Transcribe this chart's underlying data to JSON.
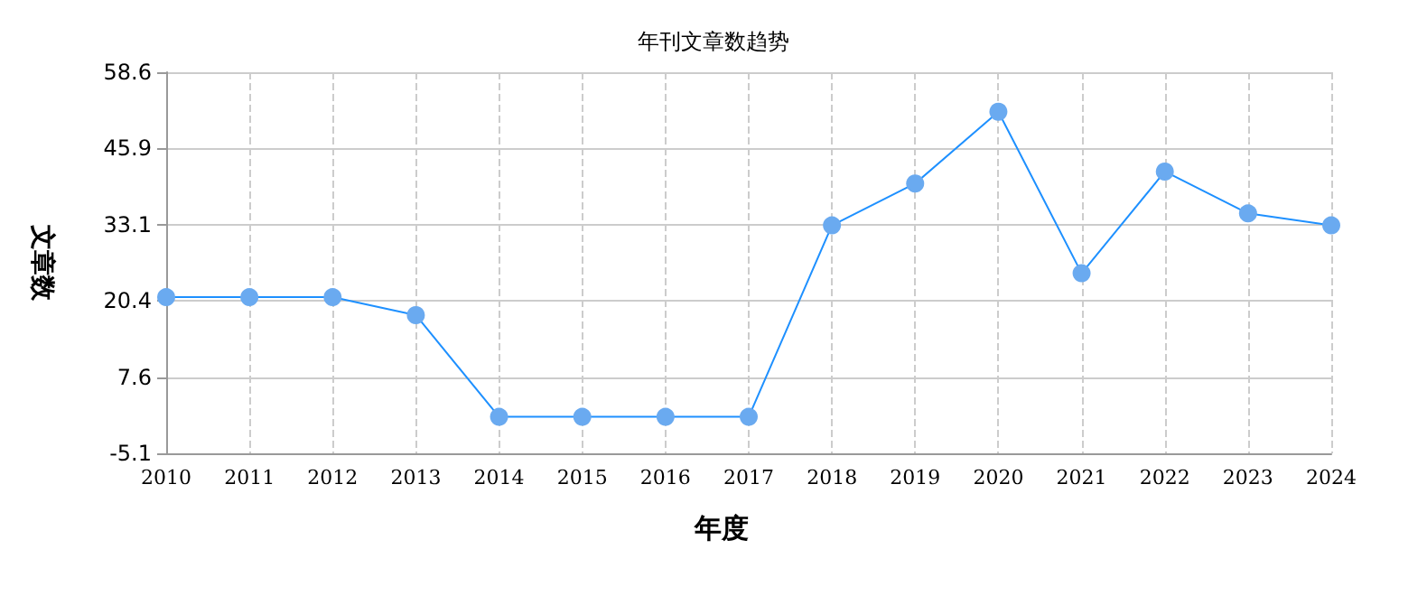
{
  "chart_data": {
    "type": "line",
    "title": "年刊文章数趋势",
    "xlabel": "年度",
    "ylabel": "文章数",
    "categories": [
      "2010",
      "2011",
      "2012",
      "2013",
      "2014",
      "2015",
      "2016",
      "2017",
      "2018",
      "2019",
      "2020",
      "2021",
      "2022",
      "2023",
      "2024"
    ],
    "series": [
      {
        "color": "#1e90ff",
        "values": [
          21,
          21,
          21,
          18,
          1,
          1,
          1,
          1,
          33,
          40,
          52,
          25,
          42,
          35,
          33
        ]
      }
    ],
    "ylim": [
      -5.1,
      58.6
    ],
    "yticks": [
      -5.1,
      7.6,
      20.4,
      33.1,
      45.9,
      58.6
    ],
    "grid": true,
    "marker": "circle",
    "line_style": "solid"
  }
}
